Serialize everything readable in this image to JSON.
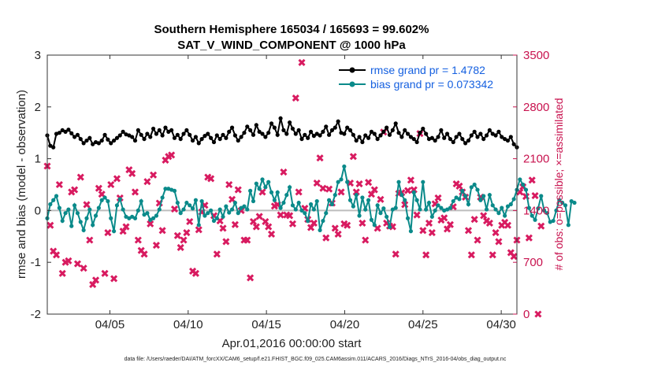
{
  "chart_data": {
    "type": "line",
    "title": "Southern Hemisphere 165034 / 165693 = 99.602%",
    "subtitle": "SAT_V_WIND_COMPONENT @ 1000 hPa",
    "xlabel": "Apr.01,2016 00:00:00 start",
    "ylabel": "rmse and bias (model - observation)",
    "ylabel_right": "# of obs: o=possible; ×=assimilated",
    "xlim": [
      1,
      31
    ],
    "ylim": [
      -2,
      3
    ],
    "ylim_right": [
      0,
      3500
    ],
    "x_ticks": [
      5,
      10,
      15,
      20,
      25,
      30
    ],
    "x_tick_labels": [
      "04/05",
      "04/10",
      "04/15",
      "04/20",
      "04/25",
      "04/30"
    ],
    "y_ticks": [
      -2,
      -1,
      0,
      1,
      2,
      3
    ],
    "y_tick_labels": [
      "-2",
      "-1",
      "0",
      "1",
      "2",
      "3"
    ],
    "y_right_ticks": [
      0,
      700,
      1400,
      2100,
      2800,
      3500
    ],
    "y_right_tick_labels": [
      "0",
      "700",
      "1400",
      "2100",
      "2800",
      "3500"
    ],
    "zero_line": 0,
    "footnote": "data file: /Users/raeder/DAI/ATM_forcXX/CAM6_setup/f.e21.FHIST_BGC.f09_025.CAM6assim.011/ACARS_2016/Diags_NTrS_2016-04/obs_diag_output.nc",
    "legend": {
      "position": "top-right",
      "entries": [
        {
          "label": "rmse grand pr = 1.4782",
          "color": "#000000"
        },
        {
          "label": "bias grand pr = 0.073342",
          "color": "#0a8a8a"
        }
      ]
    },
    "series": [
      {
        "name": "rmse",
        "color": "#000000",
        "axis": "left",
        "marker": "circle",
        "values": [
          1.45,
          1.25,
          1.22,
          1.48,
          1.5,
          1.55,
          1.52,
          1.56,
          1.49,
          1.42,
          1.46,
          1.38,
          1.3,
          1.35,
          1.4,
          1.28,
          1.32,
          1.3,
          1.35,
          1.46,
          1.37,
          1.3,
          1.35,
          1.4,
          1.45,
          1.52,
          1.47,
          1.45,
          1.42,
          1.35,
          1.55,
          1.46,
          1.38,
          1.48,
          1.42,
          1.58,
          1.48,
          1.55,
          1.45,
          1.6,
          1.52,
          1.55,
          1.4,
          1.46,
          1.38,
          1.48,
          1.55,
          1.46,
          1.35,
          1.42,
          1.3,
          1.38,
          1.44,
          1.48,
          1.4,
          1.32,
          1.45,
          1.38,
          1.46,
          1.4,
          1.52,
          1.6,
          1.45,
          1.35,
          1.42,
          1.5,
          1.62,
          1.55,
          1.46,
          1.65,
          1.52,
          1.48,
          1.42,
          1.5,
          1.68,
          1.6,
          1.46,
          1.78,
          1.55,
          1.48,
          1.7,
          1.58,
          1.48,
          1.55,
          1.38,
          1.46,
          1.4,
          1.52,
          1.44,
          1.48,
          1.45,
          1.52,
          1.62,
          1.46,
          1.55,
          1.6,
          1.72,
          1.5,
          1.48,
          1.6,
          1.55,
          1.46,
          1.35,
          1.42,
          1.32,
          1.45,
          1.4,
          1.52,
          1.48,
          1.38,
          1.45,
          1.52,
          1.6,
          1.46,
          1.55,
          1.68,
          1.5,
          1.42,
          1.55,
          1.48,
          1.42,
          1.38,
          1.32,
          1.5,
          1.58,
          1.48,
          1.38,
          1.4,
          1.35,
          1.42,
          1.55,
          1.4,
          1.48,
          1.38,
          1.32,
          1.42,
          1.48,
          1.38,
          1.3,
          1.35,
          1.45,
          1.52,
          1.42,
          1.48,
          1.38,
          1.45,
          1.55,
          1.48,
          1.45,
          1.52,
          1.42,
          1.38,
          1.35,
          1.42,
          1.28,
          1.22
        ]
      },
      {
        "name": "bias",
        "color": "#0a8a8a",
        "axis": "left",
        "marker": "circle",
        "values": [
          -0.15,
          0.12,
          0.2,
          0.28,
          0.05,
          -0.2,
          -0.05,
          0.02,
          -0.3,
          0.1,
          -0.05,
          -0.22,
          -0.38,
          -0.15,
          0.02,
          -0.28,
          -0.1,
          0.05,
          0.2,
          0.25,
          0.18,
          -0.15,
          -0.4,
          0.1,
          0.22,
          0.02,
          -0.12,
          -0.15,
          -0.12,
          -0.15,
          0.0,
          0.18,
          -0.08,
          -0.05,
          -0.18,
          -0.15,
          -0.1,
          0.02,
          0.25,
          0.42,
          0.42,
          0.4,
          0.38,
          0.15,
          -0.05,
          0.02,
          0.15,
          0.1,
          0.04,
          0.2,
          -0.28,
          0.18,
          -0.1,
          -0.05,
          0.0,
          -0.2,
          -0.15,
          0.02,
          -0.12,
          0.08,
          -0.04,
          0.02,
          0.15,
          -0.05,
          0.05,
          0.08,
          0.02,
          0.38,
          0.18,
          0.52,
          0.42,
          0.6,
          0.45,
          0.55,
          0.35,
          0.2,
          0.35,
          0.05,
          0.15,
          0.3,
          0.45,
          0.1,
          0.02,
          0.15,
          0.0,
          -0.05,
          -0.2,
          0.12,
          0.02,
          0.18,
          -0.38,
          -0.2,
          -0.05,
          0.2,
          0.12,
          0.3,
          0.55,
          0.6,
          0.85,
          0.55,
          0.2,
          0.08,
          0.3,
          -0.1,
          0.25,
          0.02,
          0.2,
          -0.18,
          -0.28,
          0.1,
          -0.05,
          0.04,
          -0.12,
          -0.32,
          0.02,
          0.05,
          0.55,
          0.3,
          0.2,
          -0.15,
          -0.4,
          0.35,
          0.2,
          0.02,
          0.55,
          0.02,
          0.15,
          -0.12,
          0.0,
          0.1,
          0.05,
          0.0,
          0.02,
          0.05,
          0.18,
          0.25,
          0.22,
          0.38,
          0.28,
          0.12,
          0.45,
          0.5,
          0.4,
          0.2,
          0.28,
          0.02,
          0.3,
          0.1,
          0.02,
          -0.05,
          0.05,
          -0.1,
          0.08,
          0.12,
          0.22,
          0.4,
          0.6,
          0.5,
          0.4,
          0.05,
          -0.1,
          -0.18,
          0.04,
          0.28,
          0.0,
          -0.05,
          -0.22,
          -0.2,
          0.0,
          0.2,
          0.15,
          0.1,
          -0.28,
          0.18,
          0.15
        ]
      },
      {
        "name": "obs assimilated",
        "color": "#d81b60",
        "axis": "right",
        "marker": "x",
        "values": [
          2000,
          1200,
          850,
          800,
          1750,
          550,
          700,
          720,
          1650,
          1680,
          680,
          1850,
          620,
          1480,
          1000,
          400,
          460,
          1700,
          1620,
          550,
          1100,
          1750,
          480,
          1830,
          1570,
          1120,
          1180,
          1950,
          1900,
          1650,
          1000,
          860,
          810,
          1790,
          1220,
          1880,
          930,
          1500,
          1130,
          2080,
          2130,
          2150,
          1420,
          1060,
          900,
          1000,
          1100,
          1250,
          580,
          550,
          1140,
          1380,
          1470,
          1850,
          1830,
          1330,
          810,
          1260,
          1160,
          980,
          1750,
          1550,
          1210,
          1680,
          1400,
          1000,
          1000,
          490,
          1250,
          1180,
          1320,
          1650,
          1250,
          1180,
          1080,
          1460,
          1480,
          1340,
          1920,
          1340,
          1330,
          1220,
          2920,
          1650,
          3400,
          1430,
          1280,
          1170,
          1230,
          1770,
          2110,
          1700,
          1030,
          1690,
          1500,
          1160,
          1080,
          1650,
          1220,
          1200,
          1770,
          2130,
          1650,
          1760,
          1230,
          1000,
          1780,
          1620,
          1680,
          1160,
          1550,
          2460,
          1230,
          1190,
          1180,
          810,
          1630,
          1640,
          1480,
          1670,
          1810,
          1680,
          1340,
          2440,
          1130,
          800,
          1230,
          1100,
          1490,
          1570,
          1270,
          1300,
          1150,
          1210,
          1450,
          1760,
          1730,
          1650,
          1580,
          1130,
          800,
          1280,
          1000,
          1580,
          1330,
          1260,
          1230,
          800,
          1100,
          980,
          1200,
          1240,
          1200,
          830,
          780,
          1000,
          1650,
          1720,
          1590,
          1030,
          1810,
          1600,
          0,
          1190
        ]
      }
    ]
  }
}
